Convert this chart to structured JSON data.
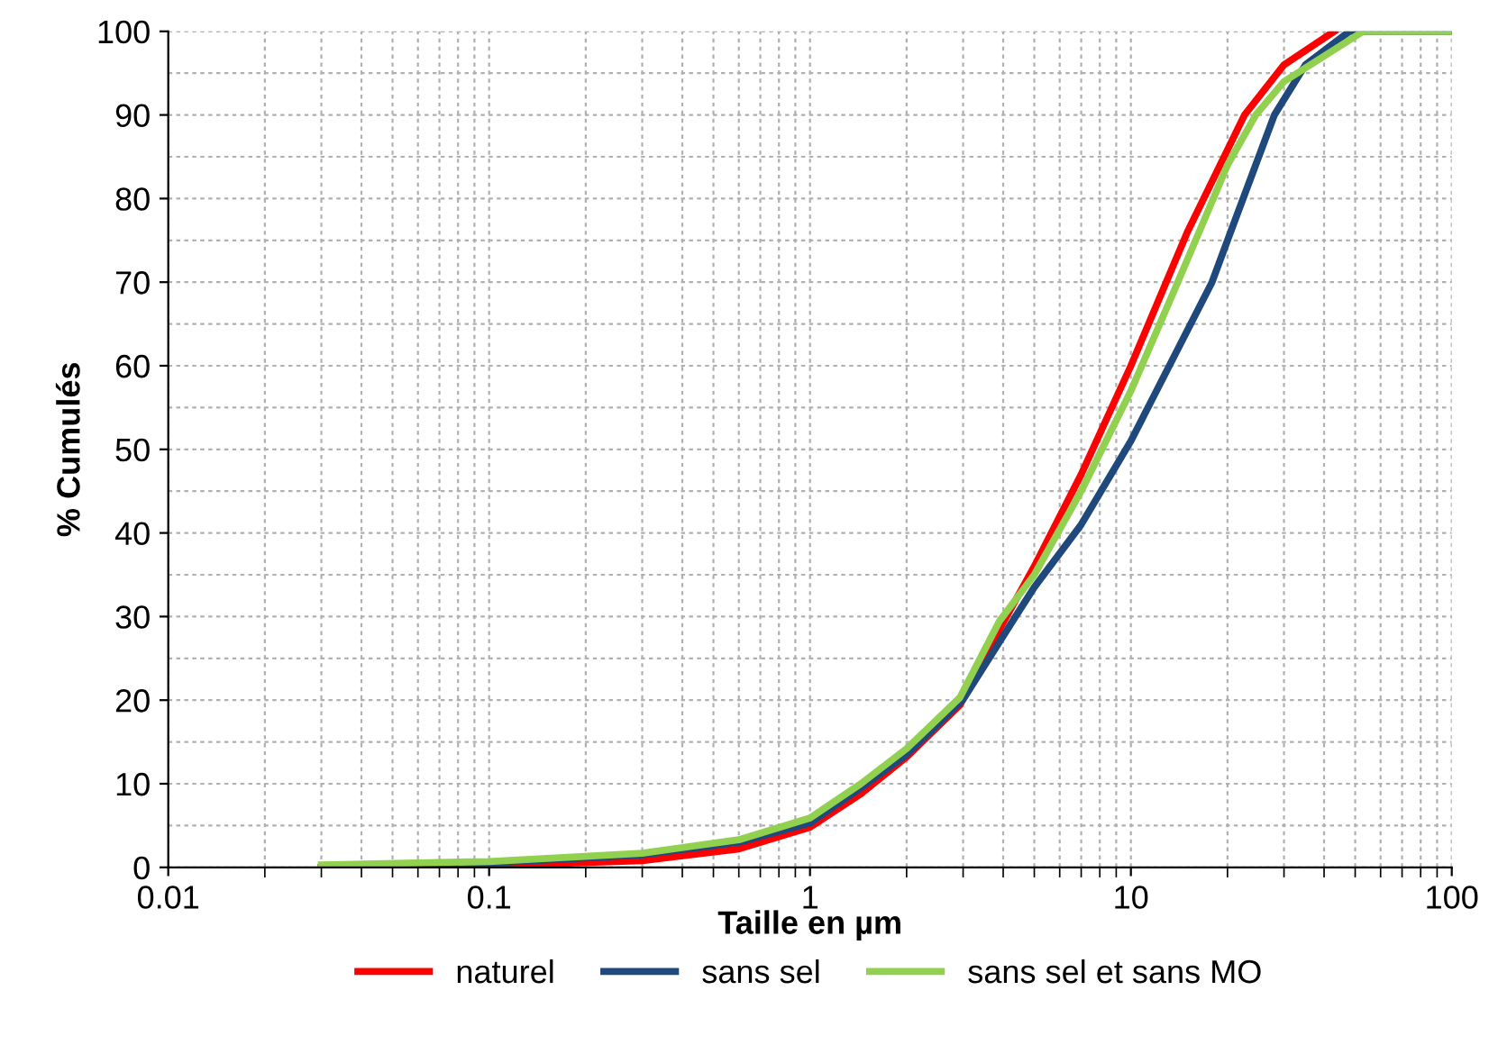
{
  "chart_data": {
    "type": "line",
    "xlabel": "Taille en µm",
    "ylabel": "% Cumulés",
    "log": "x",
    "grid": true,
    "legend": "bottom",
    "marker": "none",
    "line_style": "solid",
    "xlim": [
      0.01,
      100
    ],
    "xticks": [
      0.01,
      0.1,
      1,
      10,
      100
    ],
    "ylim": [
      0,
      100
    ],
    "yticks": [
      0,
      10,
      20,
      30,
      40,
      50,
      60,
      70,
      80,
      90,
      100
    ],
    "series": [
      {
        "name": "naturel",
        "color": "#ff0000",
        "x": [
          0.03,
          0.1,
          0.3,
          0.6,
          1,
          1.44,
          2,
          2.93,
          3.9,
          5,
          7,
          10,
          15,
          22.6,
          30,
          43
        ],
        "values": [
          0,
          0.2,
          0.8,
          2.2,
          4.8,
          8.8,
          13.2,
          19.4,
          28.5,
          36,
          47,
          60,
          76,
          90,
          96,
          100
        ]
      },
      {
        "name": "sans sel",
        "color": "#1f497d",
        "x": [
          0.03,
          0.1,
          0.3,
          0.6,
          1,
          1.44,
          2,
          2.99,
          4.37,
          5,
          7,
          10,
          17.9,
          20,
          28,
          35,
          48,
          100
        ],
        "values": [
          0,
          0.5,
          1.5,
          3,
          5.3,
          9.5,
          13.5,
          20,
          30,
          33.5,
          41,
          51,
          70,
          75,
          90,
          96,
          100,
          100
        ]
      },
      {
        "name": "sans sel et sans MO",
        "color": "#92d050",
        "x": [
          0.03,
          0.1,
          0.3,
          0.6,
          1,
          1.44,
          2,
          2.93,
          3.9,
          5,
          7,
          10,
          14,
          20,
          24.5,
          30,
          53,
          100
        ],
        "values": [
          0.3,
          0.7,
          1.7,
          3.3,
          5.9,
          10,
          14.2,
          20.3,
          29.5,
          35,
          45,
          57,
          70,
          84,
          90,
          94,
          100,
          100
        ]
      }
    ]
  }
}
